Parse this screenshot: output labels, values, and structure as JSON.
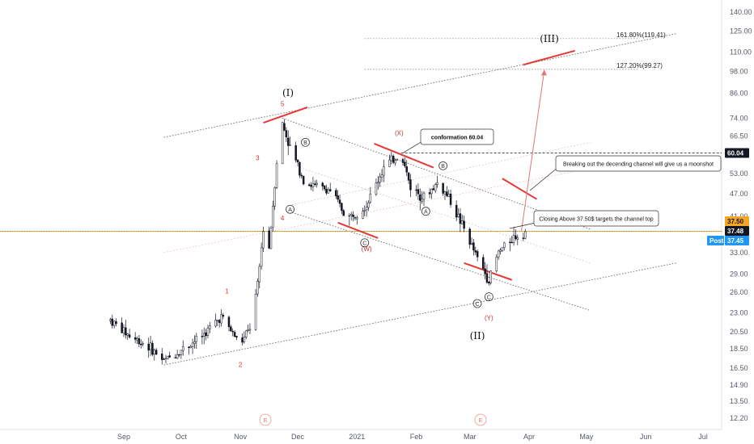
{
  "chart_data": {
    "type": "candlestick",
    "y_scale": "log",
    "ylim": [
      11.6,
      155
    ],
    "grid": false,
    "x_ticks": [
      "Sep",
      "Oct",
      "Nov",
      "Dec",
      "2021",
      "Feb",
      "Mar",
      "Apr",
      "May",
      "Jun",
      "Jul"
    ],
    "y_ticks": [
      "140.00",
      "125.00",
      "110.00",
      "98.00",
      "86.00",
      "74.00",
      "66.50",
      "60.04",
      "53.00",
      "47.00",
      "41.00",
      "37.50",
      "37.48",
      "37.45",
      "33.00",
      "29.00",
      "26.00",
      "23.00",
      "20.50",
      "18.50",
      "16.50",
      "14.90",
      "13.50",
      "12.20"
    ],
    "price_tags": [
      {
        "label": "60.04",
        "value": 60.04,
        "color": "#131722",
        "text_color": "#ffffff"
      },
      {
        "label": "37.50",
        "value": 37.5,
        "color": "#f5a623",
        "text_color": "#111111"
      },
      {
        "label": "37.48",
        "value": 37.48,
        "color": "#131722",
        "text_color": "#ffffff"
      },
      {
        "label": "37.45",
        "value": 37.45,
        "color": "#2196f3",
        "text_color": "#ffffff",
        "prefix": "Post"
      }
    ],
    "wave_labels": {
      "minor": [
        "1",
        "2",
        "3",
        "4",
        "5",
        "(W)",
        "(X)",
        "(Y)"
      ],
      "circled": [
        "A",
        "B",
        "C",
        "A",
        "B",
        "C",
        "C"
      ],
      "major": [
        "(I)",
        "(II)",
        "(III)"
      ]
    },
    "fib_levels": [
      {
        "label": "161.80%(119.41)",
        "value": 119.41
      },
      {
        "label": "127.20%(99.27)",
        "value": 99.27
      }
    ],
    "annotations": [
      "conformation 60.04",
      "Breaking out the decending channel will give us a moonshot",
      "Closing Above 37.50$ targets the channel top"
    ],
    "event_markers": [
      "E",
      "E"
    ],
    "horizontal_levels": [
      {
        "value": 60.04,
        "style": "dashed",
        "color": "#131722"
      },
      {
        "value": 37.5,
        "style": "solid",
        "color": "#f5a623"
      },
      {
        "value": 37.45,
        "style": "dotted",
        "color": "#2196f3"
      }
    ],
    "colors": {
      "up": "#131722",
      "down": "#131722",
      "wave_red": "#d32f2f",
      "channel_red": "#e53935"
    },
    "price_path": [
      [
        "2020-08-25",
        22.0
      ],
      [
        "2020-09-04",
        20.0
      ],
      [
        "2020-09-14",
        18.8
      ],
      [
        "2020-09-22",
        17.2
      ],
      [
        "2020-10-02",
        18.5
      ],
      [
        "2020-10-12",
        20.0
      ],
      [
        "2020-10-22",
        22.5
      ],
      [
        "2020-11-01",
        19.0
      ],
      [
        "2020-11-06",
        21.0
      ],
      [
        "2020-11-10",
        27.0
      ],
      [
        "2020-11-13",
        38.0
      ],
      [
        "2020-11-16",
        34.0
      ],
      [
        "2020-11-19",
        50.0
      ],
      [
        "2020-11-22",
        74.0
      ],
      [
        "2020-11-27",
        62.0
      ],
      [
        "2020-12-05",
        50.0
      ],
      [
        "2020-12-18",
        48.0
      ],
      [
        "2020-12-27",
        40.5
      ],
      [
        "2021-01-06",
        44.0
      ],
      [
        "2021-01-15",
        55.0
      ],
      [
        "2021-01-24",
        60.0
      ],
      [
        "2021-01-29",
        49.0
      ],
      [
        "2021-02-05",
        46.0
      ],
      [
        "2021-02-12",
        50.0
      ],
      [
        "2021-02-18",
        46.0
      ],
      [
        "2021-02-26",
        38.0
      ],
      [
        "2021-03-06",
        31.0
      ],
      [
        "2021-03-11",
        28.0
      ],
      [
        "2021-03-16",
        33.0
      ],
      [
        "2021-03-23",
        36.0
      ],
      [
        "2021-03-30",
        37.45
      ]
    ]
  }
}
